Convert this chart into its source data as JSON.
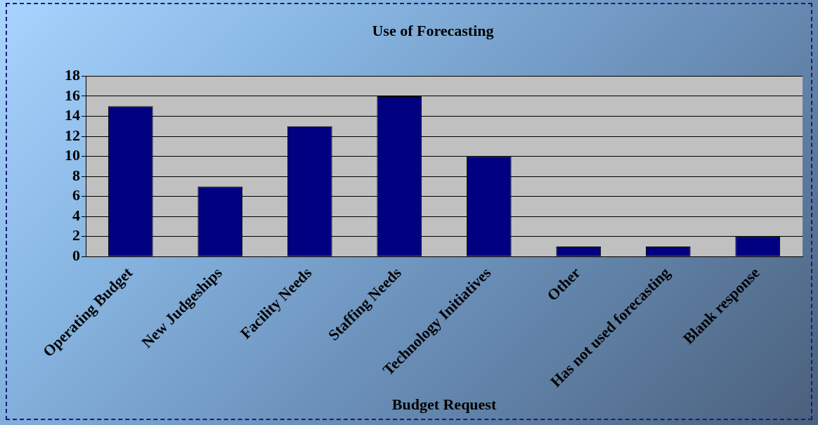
{
  "chart_data": {
    "type": "bar",
    "title": "Use of Forecasting",
    "xlabel": "Budget Request",
    "categories": [
      "Operating Budget",
      "New Judgeships",
      "Facility Needs",
      "Staffing Needs",
      "Technology Initiatives",
      "Other",
      "Has not used forecasting",
      "Blank response"
    ],
    "values": [
      15,
      7,
      13,
      16,
      10,
      1,
      1,
      2
    ],
    "color": "#000080",
    "ylim": [
      0,
      18
    ],
    "yticks": [
      0,
      2,
      4,
      6,
      8,
      10,
      12,
      14,
      16,
      18
    ],
    "grid": "y",
    "legend": false
  }
}
